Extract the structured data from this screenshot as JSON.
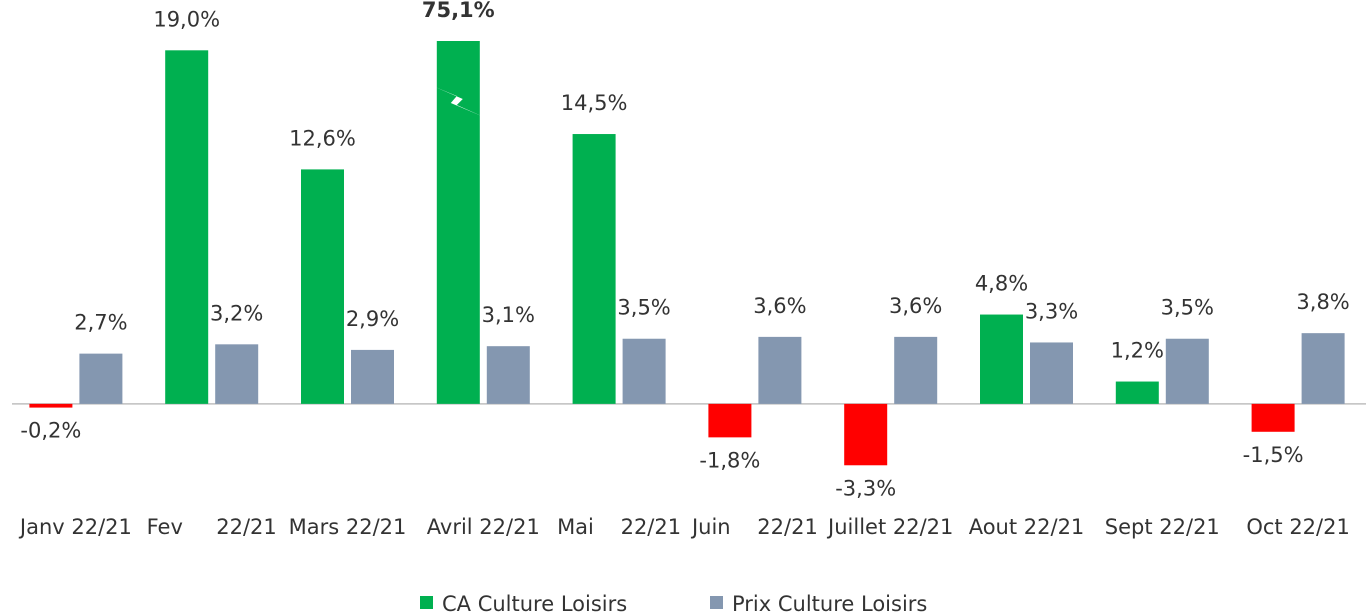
{
  "chart_data": {
    "type": "bar",
    "categories": [
      "Janv 22/21",
      "Fev     22/21",
      "Mars 22/21",
      "Avril 22/21",
      "Mai    22/21",
      "Juin    22/21",
      "Juillet 22/21",
      "Aout 22/21",
      "Sept 22/21",
      "Oct 22/21"
    ],
    "series": [
      {
        "name": "CA Culture Loisirs",
        "color": "#00b050",
        "negative_color": "#ff0000",
        "values": [
          -0.2,
          19.0,
          12.6,
          75.1,
          14.5,
          -1.8,
          -3.3,
          4.8,
          1.2,
          -1.5
        ],
        "value_labels": [
          "-0,2%",
          "19,0%",
          "12,6%",
          "75,1%",
          "14,5%",
          "-1,8%",
          "-3,3%",
          "4,8%",
          "1,2%",
          "-1,5%"
        ]
      },
      {
        "name": "Prix Culture Loisirs",
        "color": "#8497b0",
        "values": [
          2.7,
          3.2,
          2.9,
          3.1,
          3.5,
          3.6,
          3.6,
          3.3,
          3.5,
          3.8
        ],
        "value_labels": [
          "2,7%",
          "3,2%",
          "2,9%",
          "3,1%",
          "3,5%",
          "3,6%",
          "3,6%",
          "3,3%",
          "3,5%",
          "3,8%"
        ]
      }
    ],
    "ylim": [
      -3.5,
      19.5
    ],
    "axis_break": true,
    "legend": "bottom"
  }
}
